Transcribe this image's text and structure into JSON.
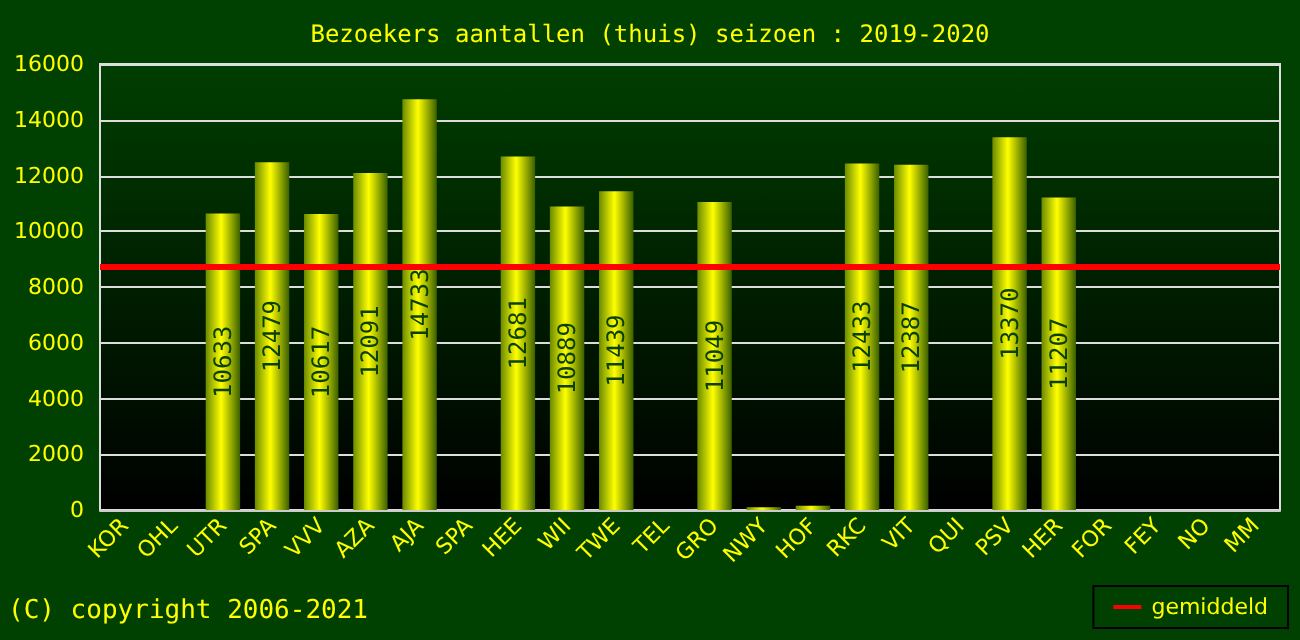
{
  "chart_data": {
    "type": "bar",
    "title": "Bezoekers aantallen (thuis) seizoen : 2019-2020",
    "categories": [
      "KOR",
      "OHL",
      "UTR",
      "SPA",
      "VVV",
      "AZA",
      "AJA",
      "SPA",
      "HEE",
      "WII",
      "TWE",
      "TEL",
      "GRO",
      "NWY",
      "HOF",
      "RKC",
      "VIT",
      "QUI",
      "PSV",
      "HER",
      "FOR",
      "FEY",
      "NO",
      "MM"
    ],
    "series": [
      {
        "color": "#ffff00",
        "values": [
          null,
          null,
          10633,
          12479,
          10617,
          12091,
          14733,
          null,
          12681,
          10889,
          11439,
          null,
          11049,
          100,
          150,
          12433,
          12387,
          null,
          13370,
          11207,
          null,
          null,
          null,
          null
        ],
        "value_labels": [
          null,
          null,
          "10633",
          "12479",
          "10617",
          "12091",
          "14733",
          null,
          "12681",
          "10889",
          "11439",
          null,
          "11049",
          null,
          null,
          "12433",
          "12387",
          null,
          "13370",
          "11207",
          null,
          null,
          null,
          null
        ]
      }
    ],
    "ylim": [
      0,
      16000
    ],
    "yticks": [
      0,
      2000,
      4000,
      6000,
      8000,
      10000,
      12000,
      14000,
      16000
    ],
    "grid": "y",
    "ref_lines": [
      {
        "axis": "y",
        "value": 8700,
        "label": "gemiddeld",
        "color": "#ff0000"
      }
    ],
    "legend": "bottom right",
    "annotations": [
      "(C) copyright 2006-2021"
    ]
  }
}
